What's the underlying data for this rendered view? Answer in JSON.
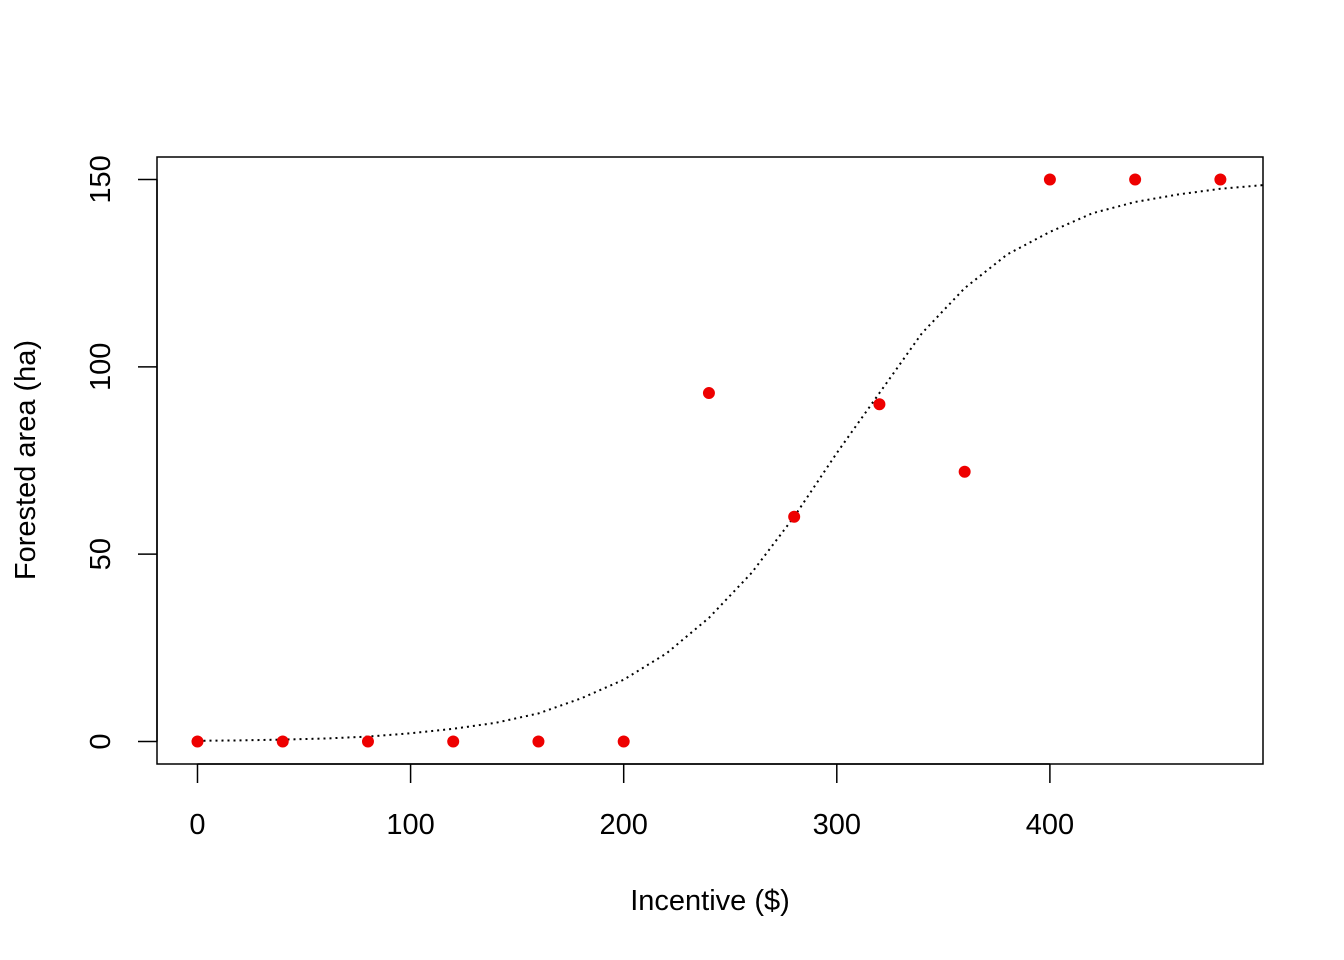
{
  "chart_data": {
    "type": "scatter",
    "title": "",
    "xlabel": "Incentive ($)",
    "ylabel": "Forested area (ha)",
    "xlim": [
      -19,
      500
    ],
    "ylim": [
      -6,
      156
    ],
    "x_ticks": [
      0,
      100,
      200,
      300,
      400
    ],
    "y_ticks": [
      0,
      50,
      100,
      150
    ],
    "grid": false,
    "legend": "none",
    "point_color": "#ee0000",
    "curve_color": "#000000",
    "series": [
      {
        "type": "scatter",
        "x": [
          0,
          40,
          80,
          120,
          160,
          200,
          240,
          280,
          320,
          360,
          400,
          440,
          480
        ],
        "y": [
          0,
          0,
          0,
          0,
          0,
          0,
          93,
          60,
          90,
          72,
          150,
          150,
          150
        ]
      },
      {
        "type": "line",
        "style": "dotted",
        "x": [
          0,
          20,
          40,
          60,
          80,
          100,
          120,
          140,
          160,
          180,
          200,
          220,
          240,
          260,
          280,
          300,
          320,
          340,
          360,
          380,
          400,
          420,
          440,
          460,
          480,
          500
        ],
        "y": [
          0.2,
          0.3,
          0.5,
          0.8,
          1.3,
          2.2,
          3.4,
          5.0,
          7.5,
          11.5,
          16.5,
          23.5,
          33,
          45,
          60,
          77,
          93,
          109,
          121,
          130,
          136,
          141,
          144,
          146,
          147.5,
          148.5
        ]
      }
    ]
  }
}
